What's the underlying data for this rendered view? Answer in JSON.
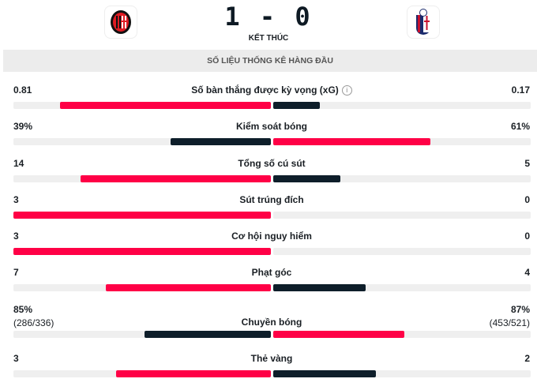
{
  "match": {
    "score": "1 - 0",
    "status": "KẾT THÚC",
    "home_logo": "ac-milan-crest",
    "away_logo": "bologna-crest"
  },
  "section_title": "SỐ LIỆU THỐNG KÊ HÀNG ĐẦU",
  "colors": {
    "highlight": "#ff0046",
    "other": "#0e1e2a",
    "track": "#efefef"
  },
  "stats": [
    {
      "label": "Số bàn thắng được kỳ vọng (xG)",
      "home": "0.81",
      "away": "0.17",
      "home_frac": 0.82,
      "away_frac": 0.18,
      "leader": "home",
      "info": "i"
    },
    {
      "label": "Kiểm soát bóng",
      "home": "39%",
      "away": "61%",
      "home_frac": 0.39,
      "away_frac": 0.61,
      "leader": "away"
    },
    {
      "label": "Tổng số cú sút",
      "home": "14",
      "away": "5",
      "home_frac": 0.74,
      "away_frac": 0.26,
      "leader": "home"
    },
    {
      "label": "Sút trúng đích",
      "home": "3",
      "away": "0",
      "home_frac": 1,
      "away_frac": 0,
      "leader": "home"
    },
    {
      "label": "Cơ hội nguy hiểm",
      "home": "3",
      "away": "0",
      "home_frac": 1,
      "away_frac": 0,
      "leader": "home"
    },
    {
      "label": "Phạt góc",
      "home": "7",
      "away": "4",
      "home_frac": 0.64,
      "away_frac": 0.36,
      "leader": "home"
    },
    {
      "label": "Chuyền bóng",
      "home": "85%",
      "away": "87%",
      "home_sub": "(286/336)",
      "away_sub": "(453/521)",
      "home_frac": 0.49,
      "away_frac": 0.51,
      "leader": "away"
    },
    {
      "label": "Thẻ vàng",
      "home": "3",
      "away": "2",
      "home_frac": 0.6,
      "away_frac": 0.4,
      "leader": "home"
    }
  ]
}
